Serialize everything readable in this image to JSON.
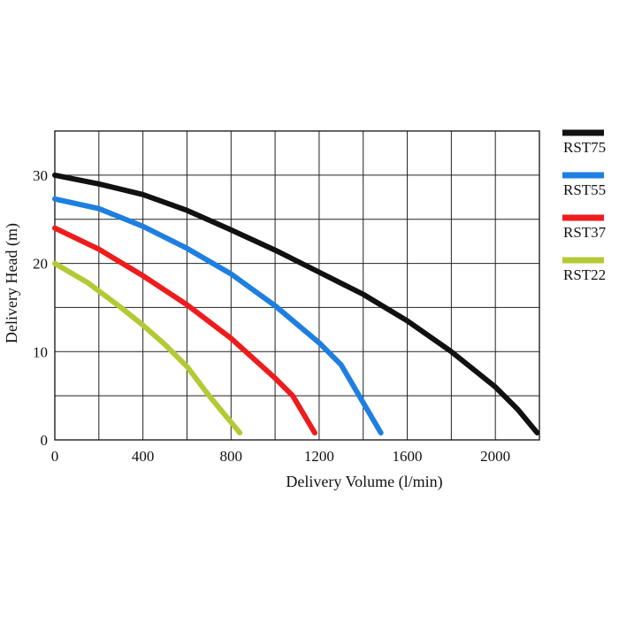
{
  "chart_data": {
    "type": "line",
    "xlabel": "Delivery Volume (l/min)",
    "ylabel": "Delivery Head (m)",
    "xlim": [
      0,
      2200
    ],
    "ylim": [
      0,
      35
    ],
    "x_ticks": [
      "0",
      "400",
      "800",
      "1200",
      "1600",
      "2000"
    ],
    "y_ticks": [
      "0",
      "10",
      "20",
      "30"
    ],
    "grid": true,
    "legend_position": "right",
    "series": [
      {
        "name": "RST75",
        "color": "#111111",
        "points": [
          [
            0,
            30
          ],
          [
            200,
            29
          ],
          [
            400,
            27.8
          ],
          [
            600,
            26
          ],
          [
            800,
            23.8
          ],
          [
            1000,
            21.5
          ],
          [
            1200,
            19
          ],
          [
            1400,
            16.5
          ],
          [
            1600,
            13.5
          ],
          [
            1800,
            10
          ],
          [
            2000,
            6
          ],
          [
            2100,
            3.5
          ],
          [
            2190,
            0.8
          ]
        ]
      },
      {
        "name": "RST55",
        "color": "#1e7fe0",
        "points": [
          [
            0,
            27.3
          ],
          [
            200,
            26.2
          ],
          [
            400,
            24.2
          ],
          [
            600,
            21.7
          ],
          [
            800,
            18.8
          ],
          [
            1000,
            15.2
          ],
          [
            1200,
            11
          ],
          [
            1300,
            8.5
          ],
          [
            1370,
            5.5
          ],
          [
            1480,
            0.8
          ]
        ]
      },
      {
        "name": "RST37",
        "color": "#ee1c1c",
        "points": [
          [
            0,
            24
          ],
          [
            200,
            21.6
          ],
          [
            400,
            18.6
          ],
          [
            600,
            15.3
          ],
          [
            800,
            11.5
          ],
          [
            1000,
            7
          ],
          [
            1080,
            5
          ],
          [
            1180,
            0.8
          ]
        ]
      },
      {
        "name": "RST22",
        "color": "#b5c935",
        "points": [
          [
            0,
            20
          ],
          [
            150,
            17.8
          ],
          [
            300,
            15
          ],
          [
            400,
            13
          ],
          [
            500,
            10.8
          ],
          [
            600,
            8.3
          ],
          [
            700,
            5
          ],
          [
            840,
            0.8
          ]
        ]
      }
    ]
  }
}
